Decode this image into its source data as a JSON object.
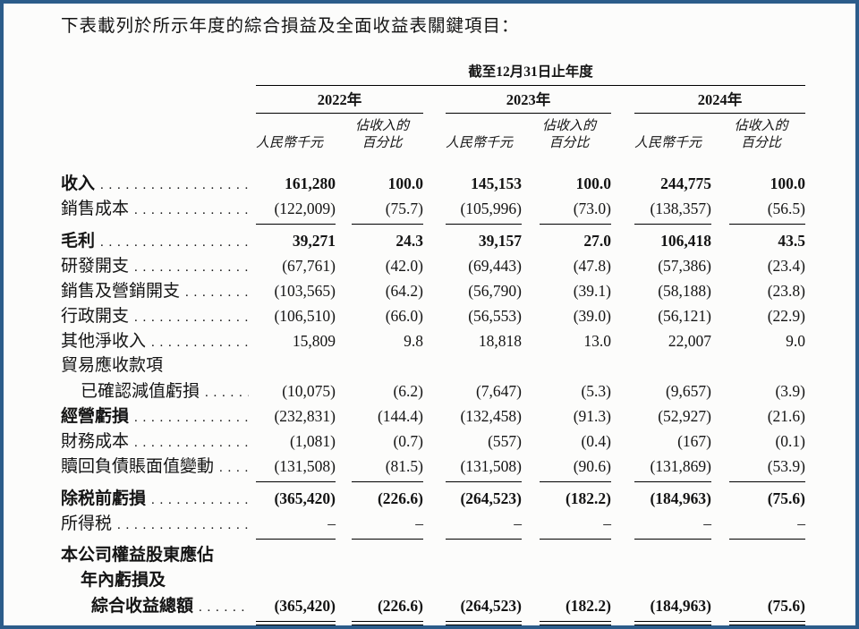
{
  "page": {
    "border_color": "#2c5c8a",
    "background": "#fcfcfb",
    "intro": "下表載列於所示年度的綜合損益及全面收益表關鍵項目："
  },
  "table": {
    "span_header": "截至12月31日止年度",
    "years": [
      "2022年",
      "2023年",
      "2024年"
    ],
    "col_headers": {
      "amount": "人民幣千元",
      "pct_line1": "佔收入的",
      "pct_line2": "百分比"
    },
    "rows": [
      {
        "label": "收入",
        "dots": true,
        "bold": true,
        "vbold": true,
        "values": [
          "161,280",
          "100.0",
          "145,153",
          "100.0",
          "244,775",
          "100.0"
        ]
      },
      {
        "label": "銷售成本",
        "dots": true,
        "values": [
          "(122,009)",
          "(75.7)",
          "(105,996)",
          "(73.0)",
          "(138,357)",
          "(56.5)"
        ],
        "line": "single"
      },
      {
        "label": "毛利",
        "dots": true,
        "bold": true,
        "vbold": true,
        "values": [
          "39,271",
          "24.3",
          "39,157",
          "27.0",
          "106,418",
          "43.5"
        ]
      },
      {
        "label": "研發開支",
        "dots": true,
        "values": [
          "(67,761)",
          "(42.0)",
          "(69,443)",
          "(47.8)",
          "(57,386)",
          "(23.4)"
        ]
      },
      {
        "label": "銷售及營銷開支",
        "dots": true,
        "values": [
          "(103,565)",
          "(64.2)",
          "(56,790)",
          "(39.1)",
          "(58,188)",
          "(23.8)"
        ]
      },
      {
        "label": "行政開支",
        "dots": true,
        "values": [
          "(106,510)",
          "(66.0)",
          "(56,553)",
          "(39.0)",
          "(56,121)",
          "(22.9)"
        ]
      },
      {
        "label": "其他淨收入",
        "dots": true,
        "values": [
          "15,809",
          "9.8",
          "18,818",
          "13.0",
          "22,007",
          "9.0"
        ]
      },
      {
        "label": "貿易應收款項",
        "dots": false,
        "values": null
      },
      {
        "label": "已確認減值虧損",
        "indent": 1,
        "dots": true,
        "values": [
          "(10,075)",
          "(6.2)",
          "(7,647)",
          "(5.3)",
          "(9,657)",
          "(3.9)"
        ]
      },
      {
        "label": "經營虧損",
        "dots": true,
        "bold": true,
        "values": [
          "(232,831)",
          "(144.4)",
          "(132,458)",
          "(91.3)",
          "(52,927)",
          "(21.6)"
        ]
      },
      {
        "label": "財務成本",
        "dots": true,
        "values": [
          "(1,081)",
          "(0.7)",
          "(557)",
          "(0.4)",
          "(167)",
          "(0.1)"
        ]
      },
      {
        "label": "贖回負債賬面值變動",
        "dots": true,
        "values": [
          "(131,508)",
          "(81.5)",
          "(131,508)",
          "(90.6)",
          "(131,869)",
          "(53.9)"
        ],
        "line": "single"
      },
      {
        "label": "除税前虧損",
        "dots": true,
        "bold": true,
        "vbold": true,
        "values": [
          "(365,420)",
          "(226.6)",
          "(264,523)",
          "(182.2)",
          "(184,963)",
          "(75.6)"
        ]
      },
      {
        "label": "所得税",
        "dots": true,
        "values": [
          "–",
          "–",
          "–",
          "–",
          "–",
          "–"
        ],
        "line": "single"
      },
      {
        "label": "本公司權益股東應佔",
        "dots": false,
        "bold": true,
        "values": null
      },
      {
        "label": "年內虧損及",
        "indent": 1,
        "dots": false,
        "bold": true,
        "values": null
      },
      {
        "label": "綜合收益總額",
        "indent": 2,
        "dots": true,
        "bold": true,
        "vbold": true,
        "values": [
          "(365,420)",
          "(226.6)",
          "(264,523)",
          "(182.2)",
          "(184,963)",
          "(75.6)"
        ],
        "line": "double"
      }
    ]
  }
}
